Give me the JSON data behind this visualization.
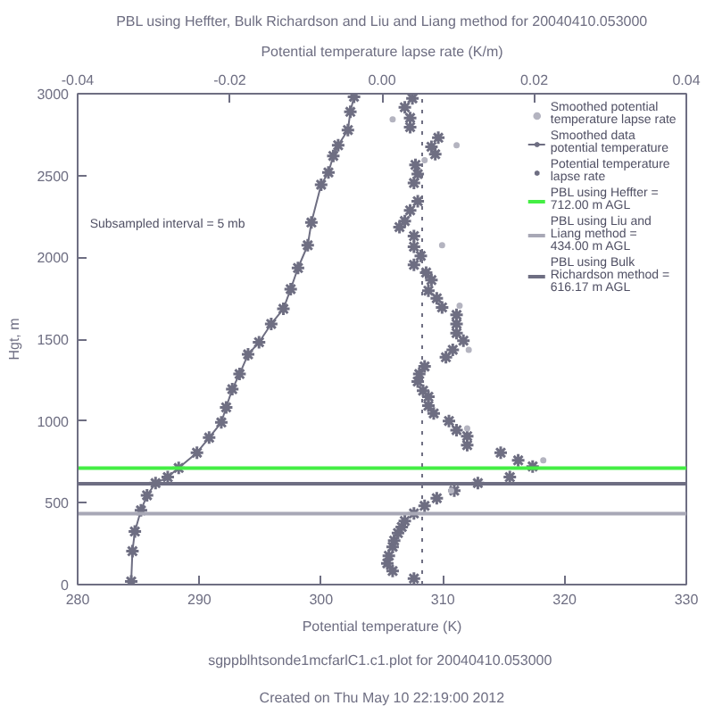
{
  "chart_data": {
    "type": "line",
    "title": "PBL using Heffter, Bulk Richardson and Liu and Liang method for 20040410.053000",
    "xlabel": "Potential temperature (K)",
    "x2label": "Potential temperature lapse rate (K/m)",
    "ylabel": "Hgt, m",
    "xlim": [
      280,
      330
    ],
    "xticks": [
      280,
      290,
      300,
      310,
      320,
      330
    ],
    "x2lim": [
      -0.04,
      0.04
    ],
    "x2ticks": [
      {
        "value": -0.04,
        "label": "-0.04"
      },
      {
        "value": -0.02,
        "label": "-0.02"
      },
      {
        "value": 0,
        "label": "0.00"
      },
      {
        "value": 0.02,
        "label": "0.02"
      },
      {
        "value": 0.04,
        "label": "0.04"
      }
    ],
    "ylim": [
      0,
      3000
    ],
    "yticks": [
      0,
      500,
      1000,
      1500,
      2000,
      2500,
      3000
    ],
    "grid": false,
    "legend": "top right",
    "series": [
      {
        "name": "Smoothed potential temperature lapse rate",
        "type": "scatter",
        "marker": "circle",
        "axis": "x2",
        "color": "#b4b4c0",
        "x": [
          0.0014,
          0.0098,
          0.0056,
          0.0079,
          0.0102,
          0.0114,
          0.0112,
          0.0212,
          0.0091
        ],
        "values": [
          2843,
          2685,
          2593,
          2074,
          1704,
          1435,
          954,
          759,
          574
        ]
      },
      {
        "name": "Smoothed data potential temperature",
        "marker": "cross",
        "color": "#6e6e82",
        "x": [
          284.4,
          284.5,
          284.7,
          285.2,
          285.7,
          286.4,
          287.4,
          288.3,
          289.8,
          290.8,
          291.8,
          292.2,
          292.7,
          293.3,
          294.0,
          294.9,
          295.9,
          296.9,
          297.5,
          298.1,
          298.9,
          299.2,
          300.0,
          300.6,
          301.0,
          301.4,
          302.2,
          302.4,
          302.7
        ],
        "values": [
          19,
          204,
          324,
          454,
          546,
          620,
          657,
          713,
          806,
          898,
          991,
          1083,
          1194,
          1287,
          1407,
          1481,
          1593,
          1685,
          1806,
          1935,
          2074,
          2213,
          2444,
          2519,
          2620,
          2685,
          2778,
          2889,
          2981
        ]
      },
      {
        "name": "Potential temperature lapse rate",
        "type": "scatter",
        "marker": "cross",
        "axis": "x2",
        "color": "#6e6e82",
        "x": [
          0.0042,
          0.0014,
          0.0007,
          0.0009,
          0.0014,
          0.0016,
          0.0021,
          0.0026,
          0.003,
          0.0042,
          0.0056,
          0.0072,
          0.0095,
          0.0126,
          0.0168,
          0.0198,
          0.0179,
          0.0156,
          0.0112,
          0.0112,
          0.0098,
          0.0088,
          0.0068,
          0.0061,
          0.0061,
          0.0054,
          0.0047,
          0.0049,
          0.0056,
          0.0084,
          0.0093,
          0.0107,
          0.0098,
          0.0098,
          0.0098,
          0.0079,
          0.0072,
          0.0061,
          0.0065,
          0.0058,
          0.0042,
          0.0051,
          0.0042,
          0.0042,
          0.0023,
          0.003,
          0.0037,
          0.0047,
          0.0042,
          0.0047,
          0.0044,
          0.007,
          0.0065,
          0.0074,
          0.0037,
          0.0037,
          0.003,
          0.004
        ],
        "values": [
          37,
          83,
          130,
          176,
          231,
          269,
          315,
          352,
          389,
          435,
          481,
          528,
          574,
          620,
          657,
          722,
          759,
          806,
          852,
          907,
          944,
          1000,
          1046,
          1093,
          1148,
          1185,
          1241,
          1287,
          1333,
          1389,
          1435,
          1491,
          1537,
          1593,
          1648,
          1694,
          1750,
          1796,
          1861,
          1907,
          1954,
          2009,
          2065,
          2130,
          2185,
          2222,
          2287,
          2343,
          2454,
          2509,
          2565,
          2630,
          2676,
          2731,
          2796,
          2852,
          2917,
          2972
        ]
      }
    ],
    "ref_lines": [
      {
        "axis": "y",
        "value": 712,
        "label": "PBL using Heffter =   712.00 m AGL",
        "color": "#44ee44"
      },
      {
        "axis": "y",
        "value": 434,
        "label": "PBL using Liu and Liang method =   434.00 m AGL",
        "color": "#a8a8b6"
      },
      {
        "axis": "y",
        "value": 616.17,
        "label": "PBL using Bulk Richardson method =   616.17 m AGL",
        "color": "#6e6e82"
      },
      {
        "axis": "x",
        "value": 308.3,
        "color": "#6e6e82",
        "line_style": "dotted"
      }
    ],
    "annotations": [
      "Subsampled interval = 5 mb",
      "sgppblhtsonde1mcfarlC1.c1.plot  for 20040410.053000",
      "Created on Thu May 10 22:19:00 2012"
    ]
  }
}
